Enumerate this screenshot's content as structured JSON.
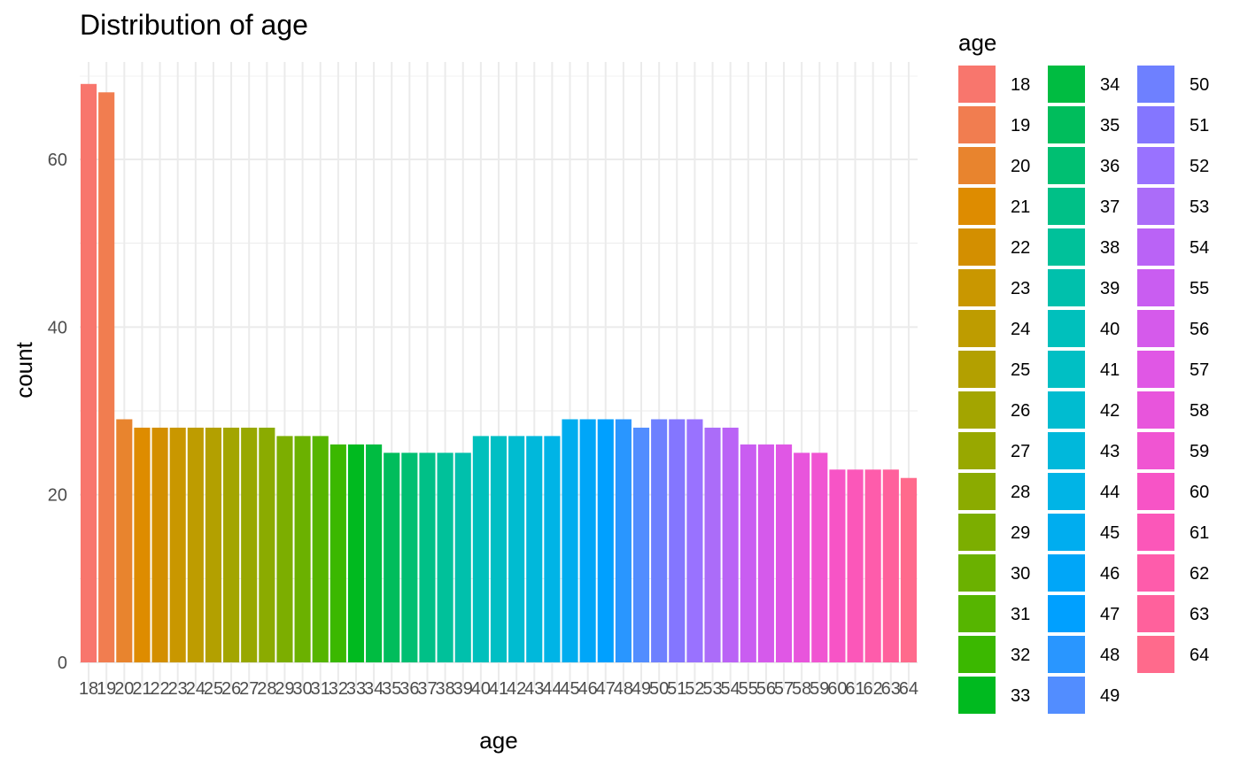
{
  "chart_data": {
    "type": "bar",
    "title": "Distribution of age",
    "xlabel": "age",
    "ylabel": "count",
    "ylim": [
      0,
      69
    ],
    "yticks": [
      0,
      20,
      40,
      60
    ],
    "grid": true,
    "legend": {
      "title": "age",
      "placement": "right",
      "columns": 3
    },
    "categories": [
      "18",
      "19",
      "20",
      "21",
      "22",
      "23",
      "24",
      "25",
      "26",
      "27",
      "28",
      "29",
      "30",
      "31",
      "32",
      "33",
      "34",
      "35",
      "36",
      "37",
      "38",
      "39",
      "40",
      "41",
      "42",
      "43",
      "44",
      "45",
      "46",
      "47",
      "48",
      "49",
      "50",
      "51",
      "52",
      "53",
      "54",
      "55",
      "56",
      "57",
      "58",
      "59",
      "60",
      "61",
      "62",
      "63",
      "64"
    ],
    "values": [
      69,
      68,
      29,
      28,
      28,
      28,
      28,
      28,
      28,
      28,
      28,
      27,
      27,
      27,
      26,
      26,
      26,
      25,
      25,
      25,
      25,
      25,
      27,
      27,
      27,
      27,
      27,
      29,
      29,
      29,
      29,
      28,
      29,
      29,
      29,
      28,
      28,
      26,
      26,
      26,
      25,
      25,
      23,
      23,
      23,
      23,
      22
    ],
    "colors": [
      "#F8766D",
      "#F17D50",
      "#E8842E",
      "#DE8C00",
      "#D38F00",
      "#C99700",
      "#BE9C00",
      "#B3A000",
      "#A3A500",
      "#98A800",
      "#8BAB00",
      "#7CAE00",
      "#6BB100",
      "#56B500",
      "#3BB800",
      "#00BA1F",
      "#00BC41",
      "#00BD5C",
      "#00BF72",
      "#00C087",
      "#00C19A",
      "#00C0AC",
      "#00C0BC",
      "#00BFC4",
      "#00BCD0",
      "#00B8DB",
      "#00B4E6",
      "#00ADEF",
      "#00A6F8",
      "#00A0FF",
      "#2996FF",
      "#528DFF",
      "#6E80FF",
      "#8476FF",
      "#9972FF",
      "#AB6CF9",
      "#BA63F6",
      "#C95DF1",
      "#D55AEB",
      "#E057E5",
      "#E855DC",
      "#F055D2",
      "#F754C6",
      "#FB57B9",
      "#FE5CAB",
      "#FF619C",
      "#FF6A8C"
    ]
  }
}
